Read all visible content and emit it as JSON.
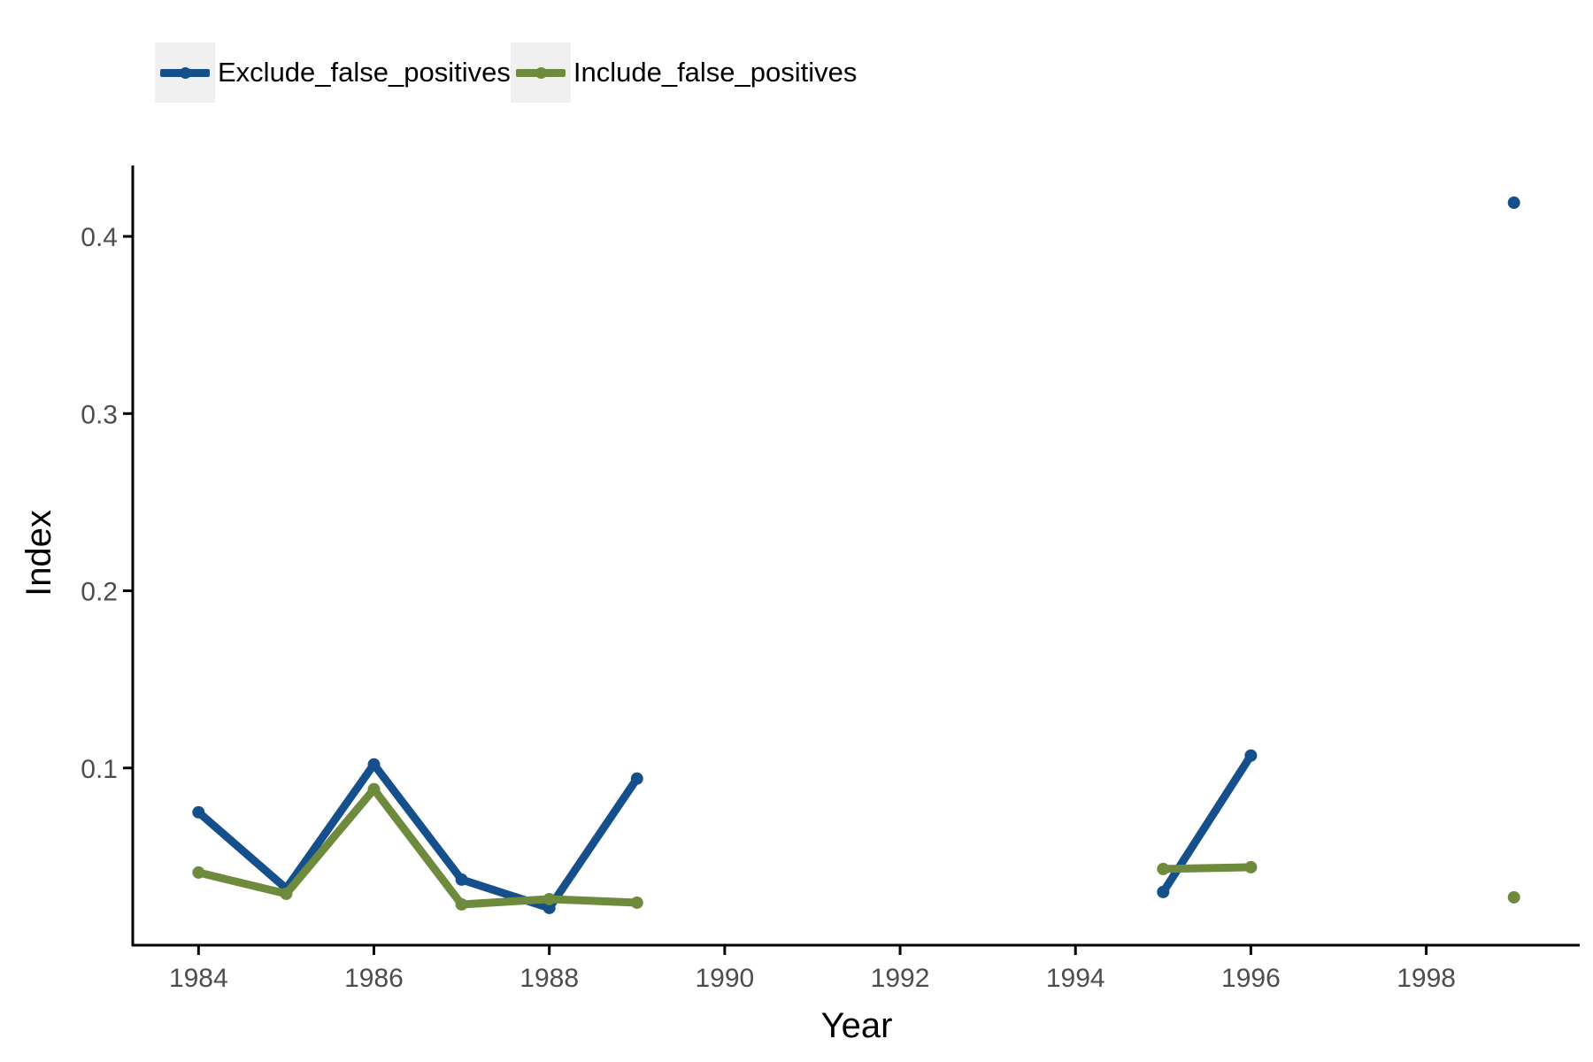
{
  "colors": {
    "exclude": "#16508c",
    "include": "#6e8b3d",
    "axis": "#000000",
    "tick_text": "#4d4d4d",
    "legend_key_bg": "#f0f0f0"
  },
  "chart_data": {
    "type": "line",
    "xlabel": "Year",
    "ylabel": "Index",
    "xlim": [
      1983.25,
      1999.75
    ],
    "ylim": [
      0.0,
      0.44
    ],
    "x_ticks": [
      1984,
      1986,
      1988,
      1990,
      1992,
      1994,
      1996,
      1998
    ],
    "y_ticks": [
      0.1,
      0.2,
      0.3,
      0.4
    ],
    "y_tick_labels": [
      "0.1",
      "0.2",
      "0.3",
      "0.4"
    ],
    "grid": false,
    "legend_position": "top-left",
    "series": [
      {
        "name": "Exclude_false_positives",
        "color": "#16508c",
        "points": [
          {
            "x": 1984,
            "y": 0.075
          },
          {
            "x": 1985,
            "y": 0.032
          },
          {
            "x": 1986,
            "y": 0.102
          },
          {
            "x": 1987,
            "y": 0.037
          },
          {
            "x": 1988,
            "y": 0.021
          },
          {
            "x": 1989,
            "y": 0.094
          },
          {
            "x": 1990,
            "y": null
          },
          {
            "x": 1995,
            "y": 0.03
          },
          {
            "x": 1996,
            "y": 0.107
          },
          {
            "x": 1997,
            "y": null
          },
          {
            "x": 1999,
            "y": 0.419
          }
        ]
      },
      {
        "name": "Include_false_positives",
        "color": "#6e8b3d",
        "points": [
          {
            "x": 1984,
            "y": 0.041
          },
          {
            "x": 1985,
            "y": 0.029
          },
          {
            "x": 1986,
            "y": 0.088
          },
          {
            "x": 1987,
            "y": 0.023
          },
          {
            "x": 1988,
            "y": 0.026
          },
          {
            "x": 1989,
            "y": 0.024
          },
          {
            "x": 1990,
            "y": null
          },
          {
            "x": 1995,
            "y": 0.043
          },
          {
            "x": 1996,
            "y": 0.044
          },
          {
            "x": 1997,
            "y": null
          },
          {
            "x": 1999,
            "y": 0.027
          }
        ]
      }
    ]
  }
}
